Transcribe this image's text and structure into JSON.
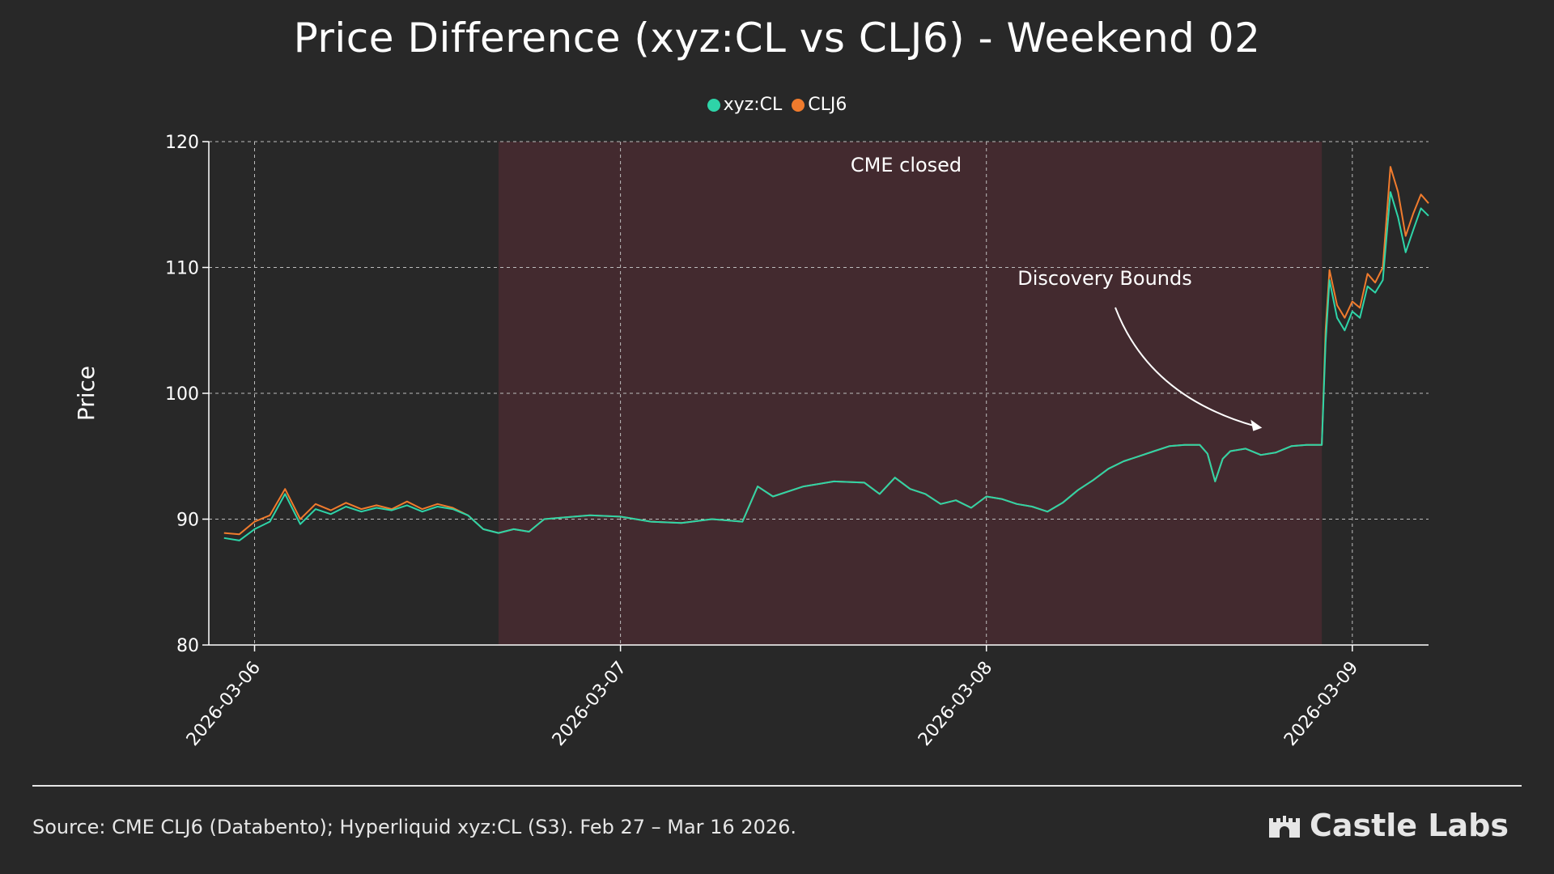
{
  "chart_data": {
    "type": "line",
    "title": "Price Difference (xyz:CL vs CLJ6) - Weekend 02",
    "xlabel": "",
    "ylabel": "Price",
    "ylim": [
      80,
      120
    ],
    "yticks": [
      "80",
      "90",
      "100",
      "110",
      "120"
    ],
    "xticks": [
      "2026-03-06",
      "2026-03-07",
      "2026-03-08",
      "2026-03-09"
    ],
    "grid": true,
    "legend_position": "top-center",
    "shaded_region": {
      "label": "CME closed",
      "start": "2026-03-06 16:00",
      "end": "2026-03-08 22:00",
      "color": "#432a2f"
    },
    "annotation": {
      "text": "Discovery Bounds",
      "points_to": [
        "2026-03-08 21:00",
        97.9
      ]
    },
    "series": [
      {
        "name": "xyz:CL",
        "color": "#2ed4a8",
        "points": [
          [
            "2026-03-05 22:00",
            88.5
          ],
          [
            "2026-03-05 23:00",
            88.3
          ],
          [
            "2026-03-06 00:00",
            89.2
          ],
          [
            "2026-03-06 01:00",
            89.8
          ],
          [
            "2026-03-06 02:00",
            92.0
          ],
          [
            "2026-03-06 03:00",
            89.6
          ],
          [
            "2026-03-06 04:00",
            90.8
          ],
          [
            "2026-03-06 05:00",
            90.4
          ],
          [
            "2026-03-06 06:00",
            91.0
          ],
          [
            "2026-03-06 07:00",
            90.6
          ],
          [
            "2026-03-06 08:00",
            90.9
          ],
          [
            "2026-03-06 09:00",
            90.7
          ],
          [
            "2026-03-06 10:00",
            91.1
          ],
          [
            "2026-03-06 11:00",
            90.6
          ],
          [
            "2026-03-06 12:00",
            91.0
          ],
          [
            "2026-03-06 13:00",
            90.8
          ],
          [
            "2026-03-06 14:00",
            90.3
          ],
          [
            "2026-03-06 15:00",
            89.2
          ],
          [
            "2026-03-06 16:00",
            88.9
          ],
          [
            "2026-03-06 17:00",
            89.2
          ],
          [
            "2026-03-06 18:00",
            89.0
          ],
          [
            "2026-03-06 19:00",
            90.0
          ],
          [
            "2026-03-06 20:00",
            90.1
          ],
          [
            "2026-03-06 22:00",
            90.3
          ],
          [
            "2026-03-07 00:00",
            90.2
          ],
          [
            "2026-03-07 02:00",
            89.8
          ],
          [
            "2026-03-07 04:00",
            89.7
          ],
          [
            "2026-03-07 06:00",
            90.0
          ],
          [
            "2026-03-07 08:00",
            89.8
          ],
          [
            "2026-03-07 09:00",
            92.6
          ],
          [
            "2026-03-07 10:00",
            91.8
          ],
          [
            "2026-03-07 12:00",
            92.6
          ],
          [
            "2026-03-07 14:00",
            93.0
          ],
          [
            "2026-03-07 16:00",
            92.9
          ],
          [
            "2026-03-07 17:00",
            92.0
          ],
          [
            "2026-03-07 18:00",
            93.3
          ],
          [
            "2026-03-07 19:00",
            92.4
          ],
          [
            "2026-03-07 20:00",
            92.0
          ],
          [
            "2026-03-07 21:00",
            91.2
          ],
          [
            "2026-03-07 22:00",
            91.5
          ],
          [
            "2026-03-07 23:00",
            90.9
          ],
          [
            "2026-03-08 00:00",
            91.8
          ],
          [
            "2026-03-08 01:00",
            91.6
          ],
          [
            "2026-03-08 02:00",
            91.2
          ],
          [
            "2026-03-08 03:00",
            91.0
          ],
          [
            "2026-03-08 04:00",
            90.6
          ],
          [
            "2026-03-08 05:00",
            91.3
          ],
          [
            "2026-03-08 06:00",
            92.3
          ],
          [
            "2026-03-08 07:00",
            93.1
          ],
          [
            "2026-03-08 08:00",
            94.0
          ],
          [
            "2026-03-08 09:00",
            94.6
          ],
          [
            "2026-03-08 10:00",
            95.0
          ],
          [
            "2026-03-08 11:00",
            95.4
          ],
          [
            "2026-03-08 12:00",
            95.8
          ],
          [
            "2026-03-08 13:00",
            95.9
          ],
          [
            "2026-03-08 14:00",
            95.9
          ],
          [
            "2026-03-08 14:30",
            95.2
          ],
          [
            "2026-03-08 15:00",
            93.0
          ],
          [
            "2026-03-08 15:30",
            94.8
          ],
          [
            "2026-03-08 16:00",
            95.4
          ],
          [
            "2026-03-08 17:00",
            95.6
          ],
          [
            "2026-03-08 18:00",
            95.1
          ],
          [
            "2026-03-08 19:00",
            95.3
          ],
          [
            "2026-03-08 20:00",
            95.8
          ],
          [
            "2026-03-08 21:00",
            95.9
          ],
          [
            "2026-03-08 22:00",
            95.9
          ],
          [
            "2026-03-08 22:15",
            104.0
          ],
          [
            "2026-03-08 22:30",
            109.0
          ],
          [
            "2026-03-08 23:00",
            106.0
          ],
          [
            "2026-03-08 23:30",
            105.0
          ],
          [
            "2026-03-09 00:00",
            106.5
          ],
          [
            "2026-03-09 00:30",
            106.0
          ],
          [
            "2026-03-09 01:00",
            108.5
          ],
          [
            "2026-03-09 01:30",
            108.0
          ],
          [
            "2026-03-09 02:00",
            109.0
          ],
          [
            "2026-03-09 02:30",
            116.0
          ],
          [
            "2026-03-09 03:00",
            114.0
          ],
          [
            "2026-03-09 03:30",
            111.2
          ],
          [
            "2026-03-09 04:00",
            113.0
          ],
          [
            "2026-03-09 04:30",
            114.7
          ],
          [
            "2026-03-09 05:00",
            114.1
          ]
        ]
      },
      {
        "name": "CLJ6",
        "color": "#f07b2d",
        "points": [
          [
            "2026-03-05 22:00",
            88.9
          ],
          [
            "2026-03-05 23:00",
            88.8
          ],
          [
            "2026-03-06 00:00",
            89.8
          ],
          [
            "2026-03-06 01:00",
            90.3
          ],
          [
            "2026-03-06 02:00",
            92.4
          ],
          [
            "2026-03-06 03:00",
            90.0
          ],
          [
            "2026-03-06 04:00",
            91.2
          ],
          [
            "2026-03-06 05:00",
            90.7
          ],
          [
            "2026-03-06 06:00",
            91.3
          ],
          [
            "2026-03-06 07:00",
            90.8
          ],
          [
            "2026-03-06 08:00",
            91.1
          ],
          [
            "2026-03-06 09:00",
            90.8
          ],
          [
            "2026-03-06 10:00",
            91.4
          ],
          [
            "2026-03-06 11:00",
            90.8
          ],
          [
            "2026-03-06 12:00",
            91.2
          ],
          [
            "2026-03-06 13:00",
            90.9
          ],
          [
            "2026-03-06 14:00",
            90.3
          ],
          [
            "2026-03-06 15:00",
            89.2
          ],
          [
            "2026-03-06 16:00",
            88.9
          ],
          [
            "2026-03-06 17:00",
            89.2
          ],
          [
            "2026-03-06 18:00",
            89.0
          ],
          [
            "2026-03-06 19:00",
            90.0
          ],
          [
            "2026-03-06 20:00",
            90.1
          ],
          [
            "2026-03-06 22:00",
            90.3
          ],
          [
            "2026-03-07 00:00",
            90.2
          ],
          [
            "2026-03-07 02:00",
            89.8
          ],
          [
            "2026-03-07 04:00",
            89.7
          ],
          [
            "2026-03-07 06:00",
            90.0
          ],
          [
            "2026-03-07 08:00",
            89.8
          ],
          [
            "2026-03-07 09:00",
            92.6
          ],
          [
            "2026-03-07 10:00",
            91.8
          ],
          [
            "2026-03-07 12:00",
            92.6
          ],
          [
            "2026-03-07 14:00",
            93.0
          ],
          [
            "2026-03-07 16:00",
            92.9
          ],
          [
            "2026-03-07 17:00",
            92.0
          ],
          [
            "2026-03-07 18:00",
            93.3
          ],
          [
            "2026-03-07 19:00",
            92.4
          ],
          [
            "2026-03-07 20:00",
            92.0
          ],
          [
            "2026-03-07 21:00",
            91.2
          ],
          [
            "2026-03-07 22:00",
            91.5
          ],
          [
            "2026-03-07 23:00",
            90.9
          ],
          [
            "2026-03-08 00:00",
            91.8
          ],
          [
            "2026-03-08 01:00",
            91.6
          ],
          [
            "2026-03-08 02:00",
            91.2
          ],
          [
            "2026-03-08 03:00",
            91.0
          ],
          [
            "2026-03-08 04:00",
            90.6
          ],
          [
            "2026-03-08 05:00",
            91.3
          ],
          [
            "2026-03-08 06:00",
            92.3
          ],
          [
            "2026-03-08 07:00",
            93.1
          ],
          [
            "2026-03-08 08:00",
            94.0
          ],
          [
            "2026-03-08 09:00",
            94.6
          ],
          [
            "2026-03-08 10:00",
            95.0
          ],
          [
            "2026-03-08 11:00",
            95.4
          ],
          [
            "2026-03-08 12:00",
            95.8
          ],
          [
            "2026-03-08 13:00",
            95.9
          ],
          [
            "2026-03-08 14:00",
            95.9
          ],
          [
            "2026-03-08 14:30",
            95.2
          ],
          [
            "2026-03-08 15:00",
            93.0
          ],
          [
            "2026-03-08 15:30",
            94.8
          ],
          [
            "2026-03-08 16:00",
            95.4
          ],
          [
            "2026-03-08 17:00",
            95.6
          ],
          [
            "2026-03-08 18:00",
            95.1
          ],
          [
            "2026-03-08 19:00",
            95.3
          ],
          [
            "2026-03-08 20:00",
            95.8
          ],
          [
            "2026-03-08 21:00",
            95.9
          ],
          [
            "2026-03-08 22:00",
            95.9
          ],
          [
            "2026-03-08 22:15",
            105.0
          ],
          [
            "2026-03-08 22:30",
            109.8
          ],
          [
            "2026-03-08 23:00",
            107.0
          ],
          [
            "2026-03-08 23:30",
            106.0
          ],
          [
            "2026-03-09 00:00",
            107.3
          ],
          [
            "2026-03-09 00:30",
            106.8
          ],
          [
            "2026-03-09 01:00",
            109.5
          ],
          [
            "2026-03-09 01:30",
            108.8
          ],
          [
            "2026-03-09 02:00",
            110.0
          ],
          [
            "2026-03-09 02:30",
            118.0
          ],
          [
            "2026-03-09 03:00",
            116.0
          ],
          [
            "2026-03-09 03:30",
            112.5
          ],
          [
            "2026-03-09 04:00",
            114.3
          ],
          [
            "2026-03-09 04:30",
            115.8
          ],
          [
            "2026-03-09 05:00",
            115.1
          ]
        ]
      }
    ]
  },
  "footer": {
    "source": "Source: CME CLJ6 (Databento); Hyperliquid xyz:CL (S3). Feb 27 – Mar 16 2026.",
    "brand": "Castle Labs"
  }
}
